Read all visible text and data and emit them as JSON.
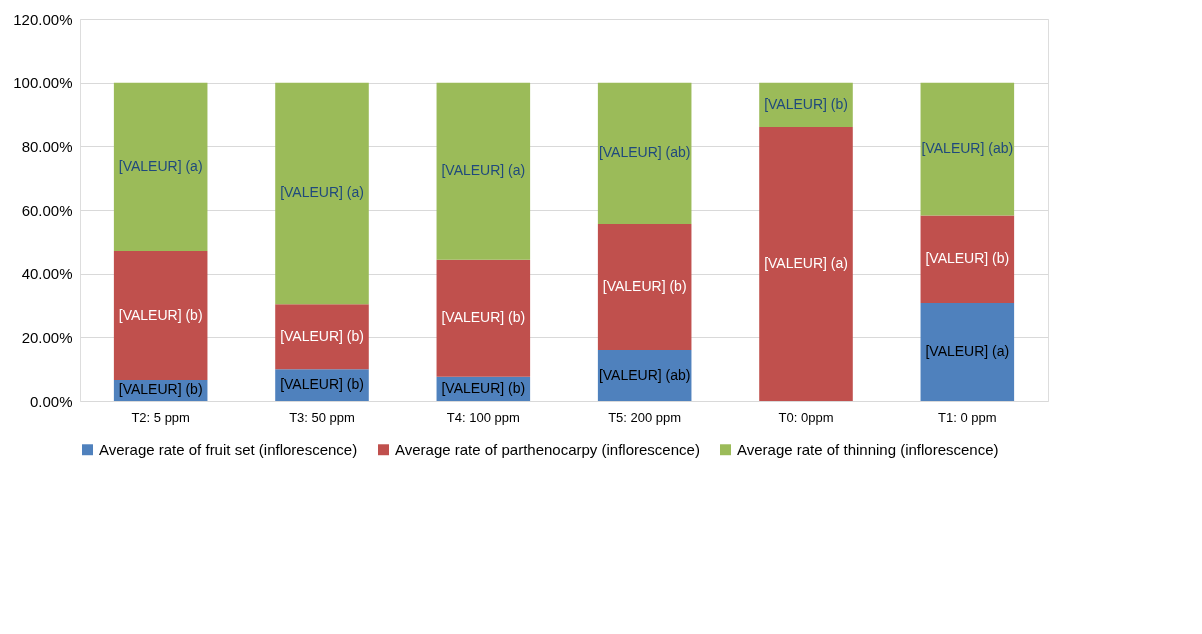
{
  "chart_data": {
    "type": "bar",
    "stacked": true,
    "categories": [
      "T2: 5 ppm",
      "T3: 50 ppm",
      "T4: 100 ppm",
      "T5: 200 ppm",
      "T0: 0ppm",
      "T1: 0 ppm"
    ],
    "series": [
      {
        "name": "Average rate of fruit set (inflorescence)",
        "color": "#4f81bd",
        "values": [
          6.6,
          10.0,
          7.6,
          16.0,
          0,
          30.8
        ],
        "value_labels": [
          "[VALEUR] (b)",
          "[VALEUR] (b)",
          "[VALEUR] (b)",
          "[VALEUR] (ab)",
          null,
          "[VALEUR] (a)"
        ]
      },
      {
        "name": "Average rate of parthenocarpy (inflorescence)",
        "color": "#c0504d",
        "values": [
          40.5,
          20.4,
          36.8,
          39.6,
          86.1,
          27.5
        ],
        "value_labels": [
          "[VALEUR] (b)",
          "[VALEUR] (b)",
          "[VALEUR] (b)",
          "[VALEUR] (b)",
          "[VALEUR] (a)",
          "[VALEUR] (b)"
        ]
      },
      {
        "name": "Average rate of thinning (inflorescence)",
        "color": "#9bbb59",
        "values": [
          52.9,
          69.6,
          55.6,
          44.4,
          13.9,
          41.7
        ],
        "value_labels": [
          "[VALEUR] (a)",
          "[VALEUR] (a)",
          "[VALEUR] (a)",
          "[VALEUR] (ab)",
          "[VALEUR] (b)",
          "[VALEUR] (ab)"
        ]
      }
    ],
    "ylim": [
      0,
      120
    ],
    "yticks": [
      {
        "value": 0,
        "label": "0.00%"
      },
      {
        "value": 20,
        "label": "20.00%"
      },
      {
        "value": 40,
        "label": "40.00%"
      },
      {
        "value": 60,
        "label": "60.00%"
      },
      {
        "value": 80,
        "label": "80.00%"
      },
      {
        "value": 100,
        "label": "100.00%"
      },
      {
        "value": 120,
        "label": "120.00%"
      }
    ],
    "grid": "y",
    "legend": "bottom"
  }
}
